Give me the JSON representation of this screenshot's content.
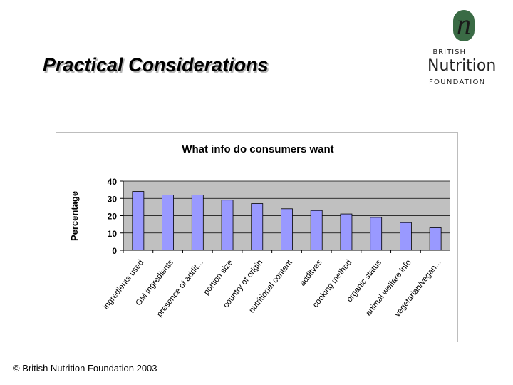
{
  "slide": {
    "title": "Practical Considerations",
    "footer": "© British Nutrition Foundation 2003"
  },
  "logo": {
    "letter": "n",
    "line1": "BRITISH",
    "line2": "Nutrition",
    "line3": "FOUNDATION",
    "mark_color": "#3a6b45"
  },
  "chart_data": {
    "type": "bar",
    "title": "What info do consumers want",
    "xlabel": "",
    "ylabel": "Percentage",
    "categories": [
      "ingredients used",
      "GM ingredients",
      "presence of addit...",
      "portion size",
      "country of origin",
      "nutritional content",
      "additves",
      "cooking method",
      "organic status",
      "animal welfare info",
      "vegetarian/vegan..."
    ],
    "values": [
      34,
      32,
      32,
      29,
      27,
      24,
      23,
      21,
      19,
      16,
      13
    ],
    "ylim": [
      0,
      40
    ],
    "yticks": [
      0,
      10,
      20,
      30,
      40
    ],
    "grid": true,
    "legend": "none",
    "bar_color": "#9999ff",
    "plot_bg": "#c0c0c0"
  }
}
